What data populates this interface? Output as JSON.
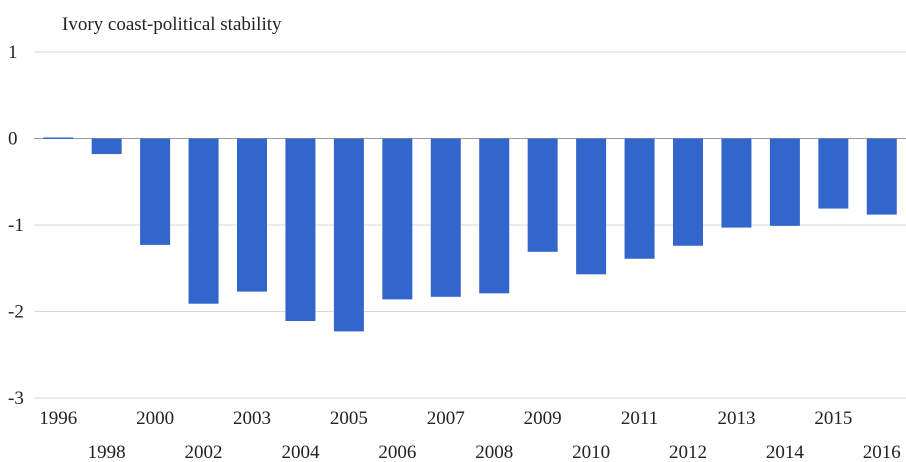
{
  "chart_data": {
    "type": "bar",
    "title": "Ivory coast-political stability",
    "xlabel": "",
    "ylabel": "",
    "categories": [
      "1996",
      "1998",
      "2000",
      "2002",
      "2003",
      "2004",
      "2005",
      "2006",
      "2007",
      "2008",
      "2009",
      "2010",
      "2011",
      "2012",
      "2013",
      "2014",
      "2015",
      "2016"
    ],
    "values": [
      0.01,
      -0.18,
      -1.23,
      -1.91,
      -1.77,
      -2.11,
      -2.23,
      -1.86,
      -1.83,
      -1.79,
      -1.31,
      -1.57,
      -1.39,
      -1.24,
      -1.03,
      -1.01,
      -0.81,
      -0.88
    ],
    "ylim": [
      -3,
      1
    ],
    "yticks": [
      "1",
      "0",
      "-1",
      "-2",
      "-3"
    ],
    "grid": true,
    "legend": "none",
    "colors": {
      "bar": "#3366cc",
      "grid": "#d9d9d9",
      "text": "#222222",
      "zero_line": "#999999"
    }
  }
}
